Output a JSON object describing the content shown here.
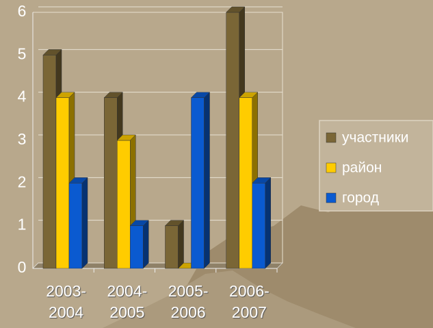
{
  "chart_data": {
    "type": "bar3d",
    "categories": [
      "2003-2004",
      "2004-2005",
      "2005-2006",
      "2006-2007"
    ],
    "series": [
      {
        "name": "участники",
        "color": "#7a6636",
        "values": [
          5,
          4,
          1,
          6
        ]
      },
      {
        "name": "район",
        "color": "#ffcc00",
        "values": [
          4,
          3,
          0,
          4
        ]
      },
      {
        "name": "город",
        "color": "#0a5ad0",
        "values": [
          2,
          1,
          4,
          2
        ]
      }
    ],
    "ylim": [
      0,
      6
    ],
    "yticks": [
      0,
      1,
      2,
      3,
      4,
      5,
      6
    ],
    "grid": true,
    "legend": "right"
  }
}
